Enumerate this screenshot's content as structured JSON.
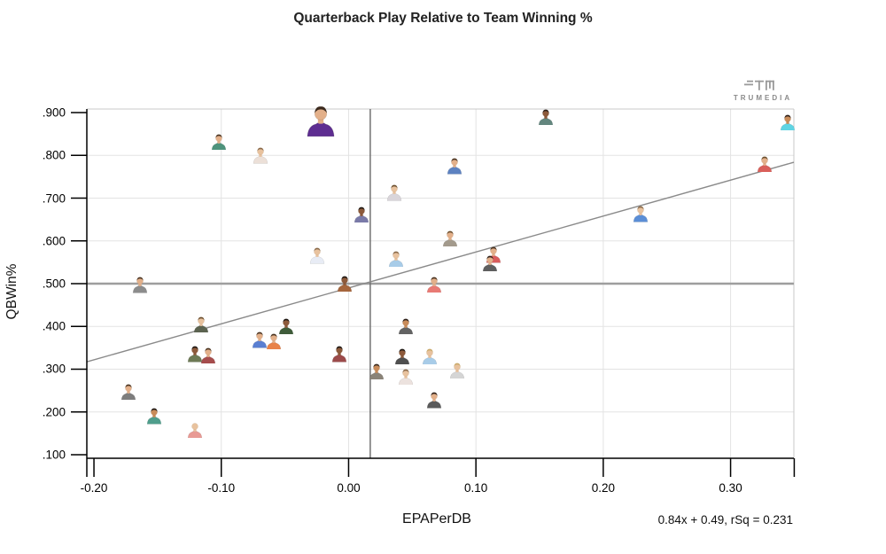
{
  "title": "Quarterback Play Relative to Team Winning %",
  "logo": {
    "name": "TruMedia",
    "text": "TRUMEDIA"
  },
  "chart_data": {
    "type": "scatter",
    "title": "Quarterback Play Relative to Team Winning %",
    "xlabel": "EPAPerDB",
    "ylabel": "QBWin%",
    "x_ticks": {
      "labels": [
        "-0.20",
        "-0.10",
        "0.00",
        "0.10",
        "0.20",
        "0.30",
        ""
      ],
      "values": [
        -0.2,
        -0.1,
        0.0,
        0.1,
        0.2,
        0.3,
        0.35
      ]
    },
    "y_ticks": {
      "labels": [
        ".900",
        ".800",
        ".700",
        ".600",
        ".500",
        ".400",
        ".300",
        ".200",
        ".100"
      ],
      "values": [
        0.9,
        0.8,
        0.7,
        0.6,
        0.5,
        0.4,
        0.3,
        0.2,
        0.1
      ]
    },
    "x_range": [
      -0.2056,
      0.3497
    ],
    "y_range": [
      0.0917,
      0.9083
    ],
    "h_gridlines": [
      0.2,
      0.3,
      0.4,
      0.6,
      0.7,
      0.8
    ],
    "v_gridlines": [
      -0.1,
      0.0,
      0.1,
      0.2,
      0.3
    ],
    "reference_lines": {
      "horizontal_y": 0.5,
      "vertical_x": 0.017
    },
    "trend": {
      "slope": 0.84,
      "intercept": 0.49,
      "rsq": 0.231,
      "label": "0.84x + 0.49, rSq = 0.231"
    },
    "legend": "none",
    "marker": "player-headshot-avatar",
    "points": [
      {
        "x": -0.022,
        "y": 0.88,
        "jersey": "#5e2d91",
        "skin": "#e3b08a",
        "hair": "#3c2a1e",
        "size": "large"
      },
      {
        "x": -0.102,
        "y": 0.832,
        "jersey": "#4e937c",
        "skin": "#e3b08a",
        "hair": "#4a3320",
        "size": "small"
      },
      {
        "x": -0.069,
        "y": 0.8,
        "jersey": "#ece0d8",
        "skin": "#e8c29e",
        "hair": "#8a6a4a",
        "size": "small"
      },
      {
        "x": 0.155,
        "y": 0.89,
        "jersey": "#63867e",
        "skin": "#8d5a3b",
        "hair": "#2e2018",
        "size": "small"
      },
      {
        "x": 0.083,
        "y": 0.775,
        "jersey": "#5d82c1",
        "skin": "#e3b08a",
        "hair": "#4a3320",
        "size": "small"
      },
      {
        "x": 0.036,
        "y": 0.712,
        "jersey": "#d9d5da",
        "skin": "#e8c29e",
        "hair": "#6b4e2e",
        "size": "small"
      },
      {
        "x": 0.01,
        "y": 0.662,
        "jersey": "#7a7aa8",
        "skin": "#8d5a3b",
        "hair": "#1e1611",
        "size": "small"
      },
      {
        "x": 0.345,
        "y": 0.877,
        "jersey": "#5fd4e3",
        "skin": "#c98c5a",
        "hair": "#2e2018",
        "size": "small"
      },
      {
        "x": 0.327,
        "y": 0.78,
        "jersey": "#d95f5a",
        "skin": "#e3b08a",
        "hair": "#6b4e2e",
        "size": "small"
      },
      {
        "x": 0.229,
        "y": 0.663,
        "jersey": "#5b8ed6",
        "skin": "#e8c29e",
        "hair": "#8a6a4a",
        "size": "small"
      },
      {
        "x": -0.025,
        "y": 0.565,
        "jersey": "#e8ecf5",
        "skin": "#e8c29e",
        "hair": "#8a6a4a",
        "size": "small"
      },
      {
        "x": -0.164,
        "y": 0.497,
        "jersey": "#8c8c8c",
        "skin": "#e3b08a",
        "hair": "#4a3320",
        "size": "small"
      },
      {
        "x": -0.003,
        "y": 0.5,
        "jersey": "#a5653c",
        "skin": "#8d5a3b",
        "hair": "#1e1611",
        "size": "small"
      },
      {
        "x": -0.116,
        "y": 0.405,
        "jersey": "#5c6350",
        "skin": "#e8c29e",
        "hair": "#6b4e2e",
        "size": "small"
      },
      {
        "x": -0.049,
        "y": 0.401,
        "jersey": "#3f5c3a",
        "skin": "#8d5a3b",
        "hair": "#1e1611",
        "size": "small"
      },
      {
        "x": -0.07,
        "y": 0.368,
        "jersey": "#5a7fd2",
        "skin": "#e3b08a",
        "hair": "#4a3320",
        "size": "small"
      },
      {
        "x": -0.059,
        "y": 0.365,
        "jersey": "#e8834a",
        "skin": "#e3b08a",
        "hair": "#4a3320",
        "size": "small"
      },
      {
        "x": -0.121,
        "y": 0.335,
        "jersey": "#6d7a55",
        "skin": "#8d5a3b",
        "hair": "#1e1611",
        "size": "small"
      },
      {
        "x": -0.11,
        "y": 0.332,
        "jersey": "#a64d4d",
        "skin": "#e3b08a",
        "hair": "#4a3320",
        "size": "small"
      },
      {
        "x": -0.007,
        "y": 0.335,
        "jersey": "#9c4a4a",
        "skin": "#8d5a3b",
        "hair": "#1e1611",
        "size": "small"
      },
      {
        "x": -0.173,
        "y": 0.247,
        "jersey": "#7d7d7d",
        "skin": "#e3b08a",
        "hair": "#4a3320",
        "size": "small"
      },
      {
        "x": -0.153,
        "y": 0.19,
        "jersey": "#4f9e8c",
        "skin": "#c98c5a",
        "hair": "#1e1611",
        "size": "small"
      },
      {
        "x": -0.121,
        "y": 0.158,
        "jersey": "#e89a94",
        "skin": "#e8c29e",
        "hair": "none",
        "size": "small"
      },
      {
        "x": 0.08,
        "y": 0.606,
        "jersey": "#a39a8c",
        "skin": "#e3b08a",
        "hair": "#6b4e2e",
        "size": "small"
      },
      {
        "x": 0.037,
        "y": 0.558,
        "jersey": "#a8cce8",
        "skin": "#e8c29e",
        "hair": "#8a6a4a",
        "size": "small"
      },
      {
        "x": 0.114,
        "y": 0.567,
        "jersey": "#d95c5c",
        "skin": "#e3b08a",
        "hair": "#4a3320",
        "size": "small"
      },
      {
        "x": 0.111,
        "y": 0.548,
        "jersey": "#5f5f5f",
        "skin": "#e3b08a",
        "hair": "#2e2018",
        "size": "small"
      },
      {
        "x": 0.067,
        "y": 0.498,
        "jersey": "#e87a74",
        "skin": "#e3b08a",
        "hair": "#4a3320",
        "size": "small"
      },
      {
        "x": 0.045,
        "y": 0.4,
        "jersey": "#636363",
        "skin": "#c98c5a",
        "hair": "#2e2018",
        "size": "small"
      },
      {
        "x": 0.042,
        "y": 0.33,
        "jersey": "#4f4f4f",
        "skin": "#8d5a3b",
        "hair": "#1e1611",
        "size": "small"
      },
      {
        "x": 0.064,
        "y": 0.33,
        "jersey": "#a8cce8",
        "skin": "#e8c29e",
        "hair": "#c9a96a",
        "size": "small"
      },
      {
        "x": 0.022,
        "y": 0.295,
        "jersey": "#8a8378",
        "skin": "#c98c5a",
        "hair": "#3c2a1e",
        "size": "small"
      },
      {
        "x": 0.045,
        "y": 0.282,
        "jersey": "#ece2de",
        "skin": "#e8c29e",
        "hair": "#8a6a4a",
        "size": "small"
      },
      {
        "x": 0.085,
        "y": 0.297,
        "jersey": "#d5d5d5",
        "skin": "#e8c29e",
        "hair": "#c9a96a",
        "size": "small"
      },
      {
        "x": 0.067,
        "y": 0.227,
        "jersey": "#5a5a5a",
        "skin": "#e3b08a",
        "hair": "#2e2018",
        "size": "small"
      }
    ],
    "colors": {
      "grid": "#e3e3e3",
      "axis": "#000000",
      "border": "#c8c8c8",
      "reference_line": "#9e9e9e",
      "vertical_reference_line": "#707070",
      "trend_line": "#8a8a8a",
      "logo_gray": "#9a9a9a"
    }
  }
}
